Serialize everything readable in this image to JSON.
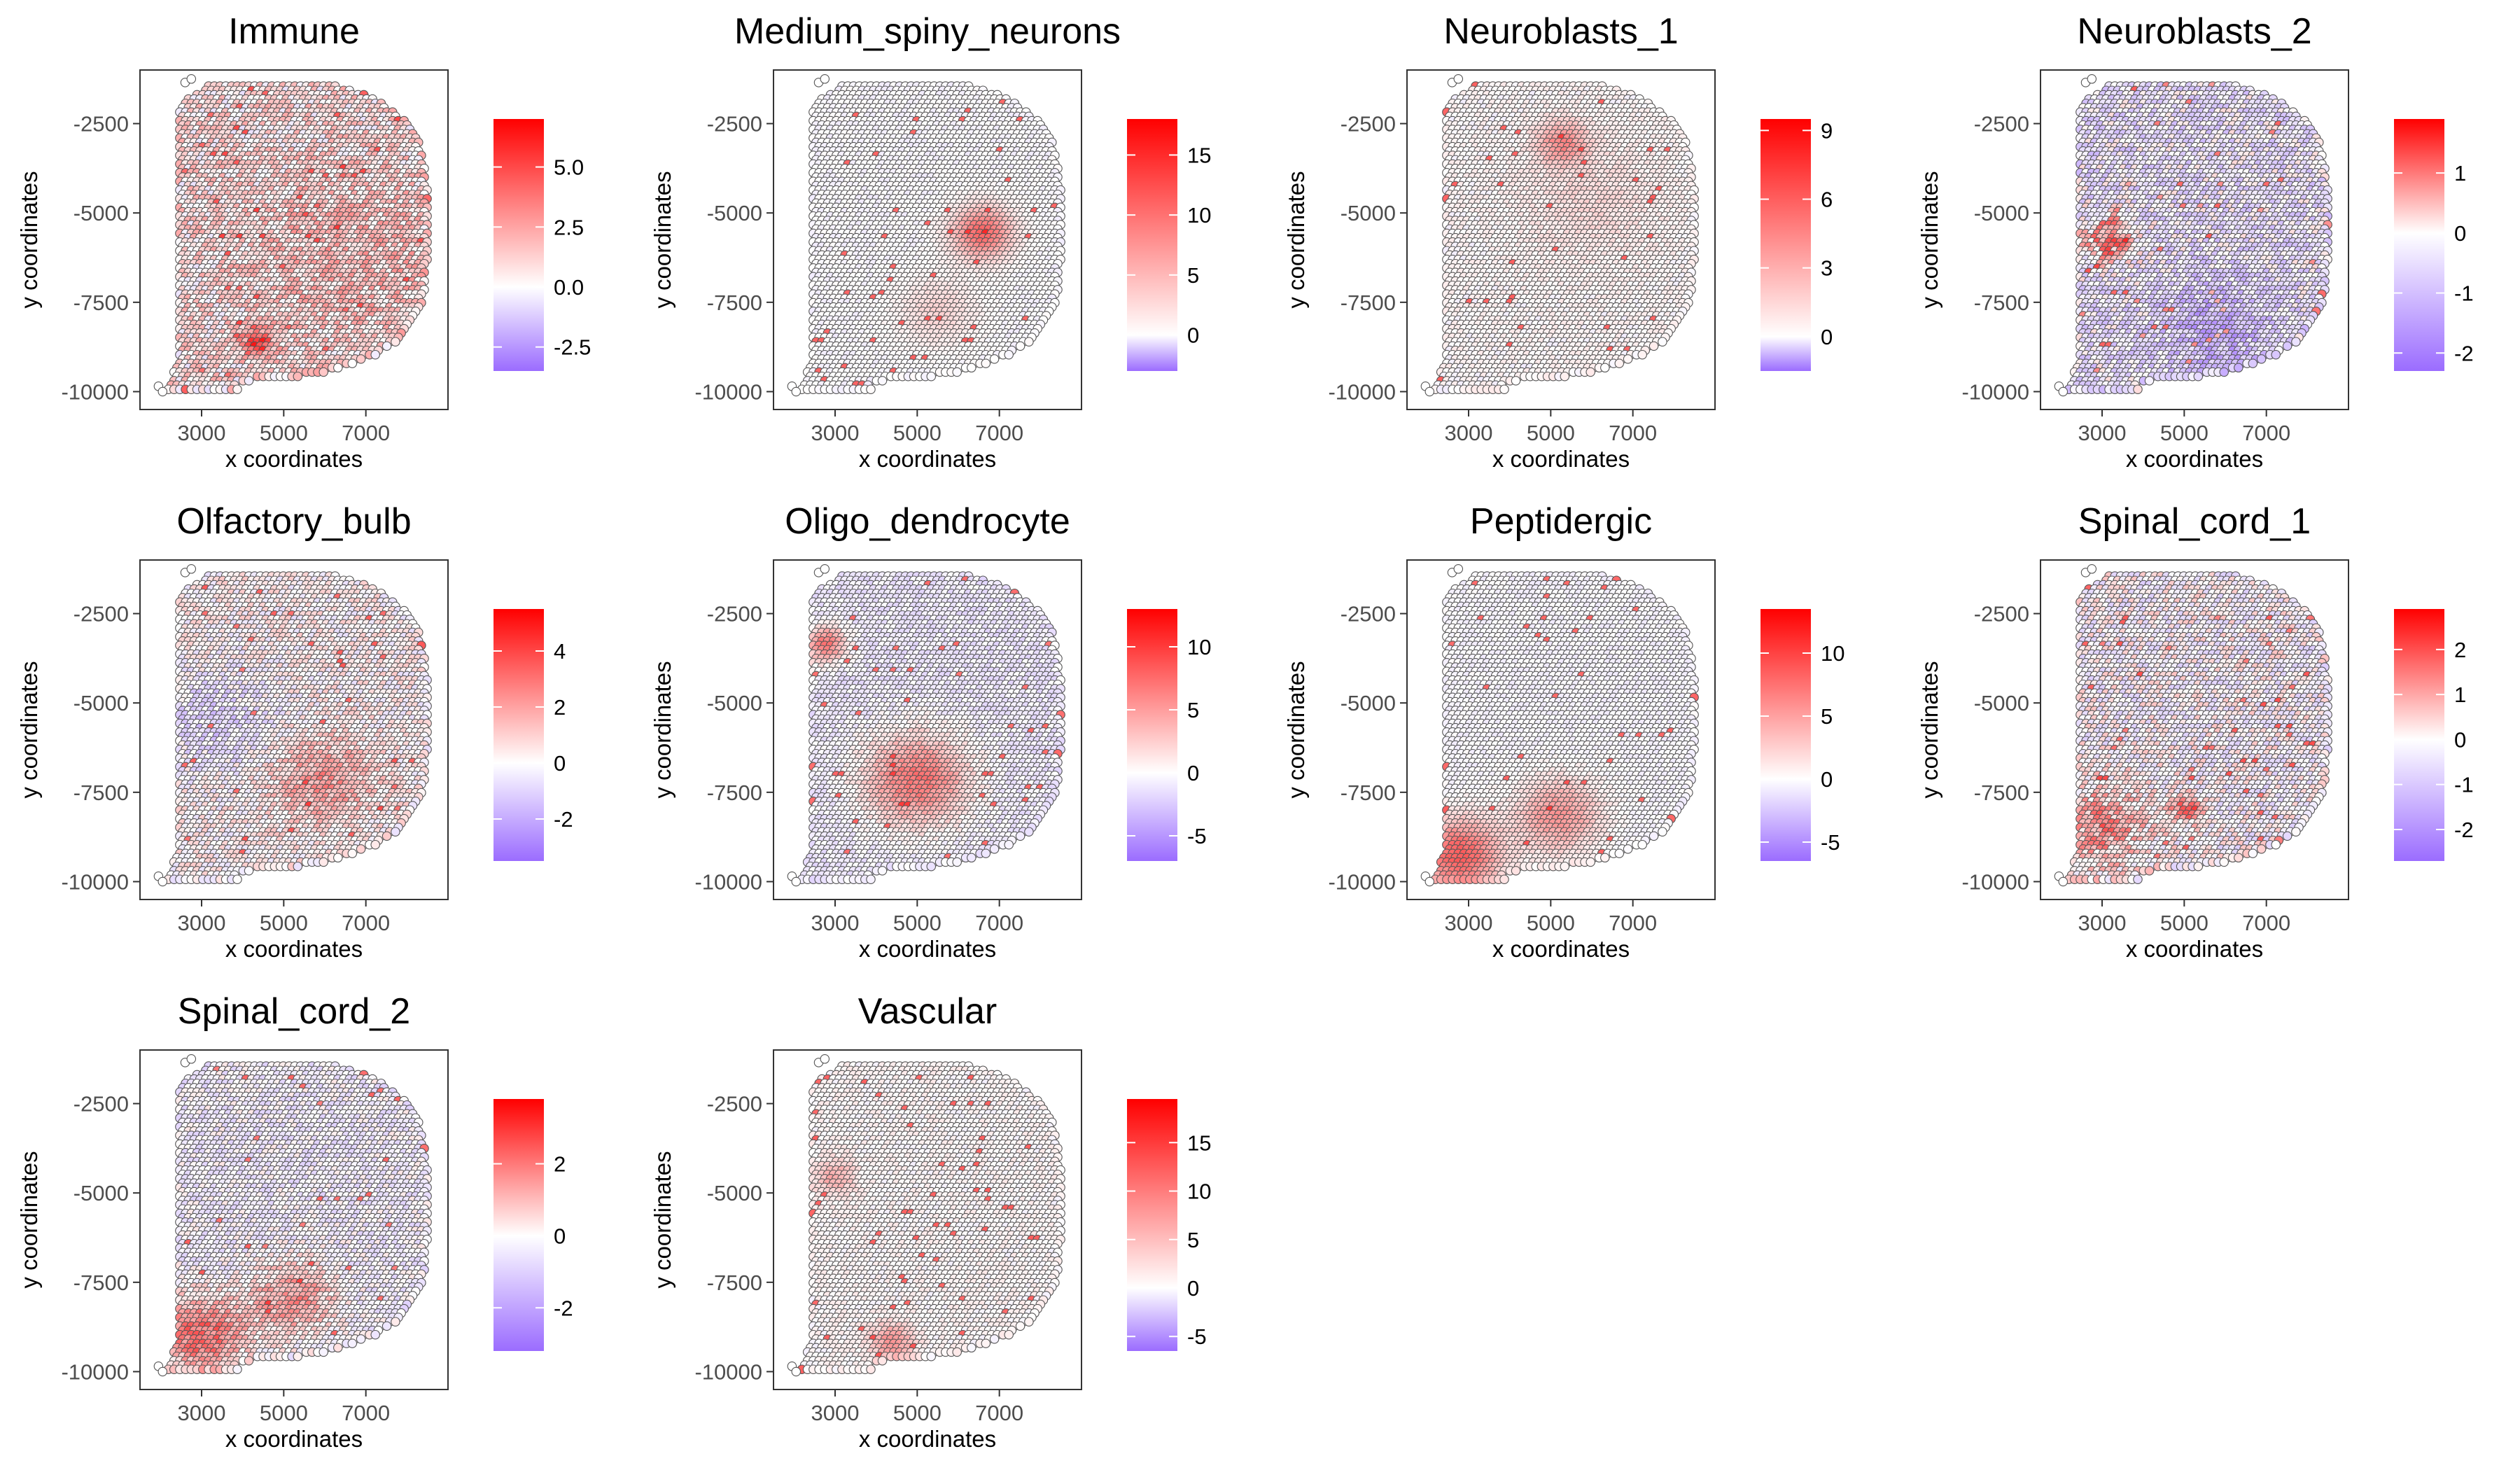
{
  "colors": {
    "low": "#9b6cff",
    "mid": "#ffffff",
    "high": "#ff0000",
    "spot_outline": "#555555"
  },
  "chart_data": [
    {
      "type": "scatter",
      "title": "Immune",
      "xlabel": "x coordinates",
      "ylabel": "y coordinates",
      "x_ticks": [
        3000,
        5000,
        7000
      ],
      "y_ticks": [
        -2500,
        -5000,
        -7500,
        -10000
      ],
      "xlim": [
        1500,
        9000
      ],
      "ylim": [
        -10500,
        -1000
      ],
      "legend": {
        "position": "right",
        "range": [
          -3.5,
          7.0
        ],
        "breaks": [
          -2.5,
          0.0,
          2.5,
          5.0
        ],
        "labels": [
          "-2.5",
          "0.0",
          "2.5",
          "5.0"
        ]
      },
      "baseline": 0.8,
      "noise": 1.6,
      "hotspots": [
        [
          4400,
          -8700,
          400,
          4.5
        ],
        [
          6600,
          -6300,
          2500,
          1.0
        ]
      ]
    },
    {
      "type": "scatter",
      "title": "Medium_spiny_neurons",
      "xlabel": "x coordinates",
      "ylabel": "y coordinates",
      "x_ticks": [
        3000,
        5000,
        7000
      ],
      "y_ticks": [
        -2500,
        -5000,
        -7500,
        -10000
      ],
      "xlim": [
        1500,
        9000
      ],
      "ylim": [
        -10500,
        -1000
      ],
      "legend": {
        "position": "right",
        "range": [
          -3,
          18
        ],
        "breaks": [
          0,
          5,
          10,
          15
        ],
        "labels": [
          "0",
          "5",
          "10",
          "15"
        ]
      },
      "baseline": 0.0,
      "noise": 0.4,
      "hotspots": [
        [
          6600,
          -5600,
          700,
          11
        ],
        [
          5500,
          -7800,
          900,
          3
        ]
      ]
    },
    {
      "type": "scatter",
      "title": "Neuroblasts_1",
      "xlabel": "x coordinates",
      "ylabel": "y coordinates",
      "x_ticks": [
        3000,
        5000,
        7000
      ],
      "y_ticks": [
        -2500,
        -5000,
        -7500,
        -10000
      ],
      "xlim": [
        1500,
        9000
      ],
      "ylim": [
        -10500,
        -1000
      ],
      "legend": {
        "position": "right",
        "range": [
          -1.5,
          9.5
        ],
        "breaks": [
          0,
          3,
          6,
          9
        ],
        "labels": [
          "0",
          "3",
          "6",
          "9"
        ]
      },
      "baseline": 0.3,
      "noise": 0.5,
      "hotspots": [
        [
          5300,
          -3100,
          600,
          4
        ],
        [
          6000,
          -4800,
          1500,
          1
        ]
      ]
    },
    {
      "type": "scatter",
      "title": "Neuroblasts_2",
      "xlabel": "x coordinates",
      "ylabel": "y coordinates",
      "x_ticks": [
        3000,
        5000,
        7000
      ],
      "y_ticks": [
        -2500,
        -5000,
        -7500,
        -10000
      ],
      "xlim": [
        1500,
        9000
      ],
      "ylim": [
        -10500,
        -1000
      ],
      "legend": {
        "position": "right",
        "range": [
          -2.3,
          1.9
        ],
        "breaks": [
          -2,
          -1,
          0,
          1
        ],
        "labels": [
          "-2",
          "-1",
          "0",
          "1"
        ]
      },
      "baseline": -0.4,
      "noise": 0.7,
      "hotspots": [
        [
          3200,
          -5800,
          650,
          1.6
        ],
        [
          5800,
          -8300,
          1300,
          -0.9
        ]
      ]
    },
    {
      "type": "scatter",
      "title": "Olfactory_bulb",
      "xlabel": "x coordinates",
      "ylabel": "y coordinates",
      "x_ticks": [
        3000,
        5000,
        7000
      ],
      "y_ticks": [
        -2500,
        -5000,
        -7500,
        -10000
      ],
      "xlim": [
        1500,
        9000
      ],
      "ylim": [
        -10500,
        -1000
      ],
      "legend": {
        "position": "right",
        "range": [
          -3.5,
          5.5
        ],
        "breaks": [
          -2,
          0,
          2,
          4
        ],
        "labels": [
          "-2",
          "0",
          "2",
          "4"
        ]
      },
      "baseline": 0.2,
      "noise": 1.0,
      "hotspots": [
        [
          6000,
          -7200,
          1200,
          2.0
        ],
        [
          3400,
          -5600,
          1400,
          -1.2
        ]
      ]
    },
    {
      "type": "scatter",
      "title": "Oligo_dendrocyte",
      "xlabel": "x coordinates",
      "ylabel": "y coordinates",
      "x_ticks": [
        3000,
        5000,
        7000
      ],
      "y_ticks": [
        -2500,
        -5000,
        -7500,
        -10000
      ],
      "xlim": [
        1500,
        9000
      ],
      "ylim": [
        -10500,
        -1000
      ],
      "legend": {
        "position": "right",
        "range": [
          -7,
          13
        ],
        "breaks": [
          -5,
          0,
          5,
          10
        ],
        "labels": [
          "-5",
          "0",
          "5",
          "10"
        ]
      },
      "baseline": -1.0,
      "noise": 1.0,
      "hotspots": [
        [
          2800,
          -3400,
          500,
          8
        ],
        [
          5000,
          -7200,
          1300,
          8
        ]
      ]
    },
    {
      "type": "scatter",
      "title": "Peptidergic",
      "xlabel": "x coordinates",
      "ylabel": "y coordinates",
      "x_ticks": [
        3000,
        5000,
        7000
      ],
      "y_ticks": [
        -2500,
        -5000,
        -7500,
        -10000
      ],
      "xlim": [
        1500,
        9000
      ],
      "ylim": [
        -10500,
        -1000
      ],
      "legend": {
        "position": "right",
        "range": [
          -6.5,
          13.5
        ],
        "breaks": [
          -5,
          0,
          5,
          10
        ],
        "labels": [
          "-5",
          "0",
          "5",
          "10"
        ]
      },
      "baseline": -0.3,
      "noise": 0.6,
      "hotspots": [
        [
          2800,
          -9300,
          1000,
          9
        ],
        [
          5200,
          -8200,
          1000,
          6
        ]
      ]
    },
    {
      "type": "scatter",
      "title": "Spinal_cord_1",
      "xlabel": "x coordinates",
      "ylabel": "y coordinates",
      "x_ticks": [
        3000,
        5000,
        7000
      ],
      "y_ticks": [
        -2500,
        -5000,
        -7500,
        -10000
      ],
      "xlim": [
        1500,
        9000
      ],
      "ylim": [
        -10500,
        -1000
      ],
      "legend": {
        "position": "right",
        "range": [
          -2.7,
          2.9
        ],
        "breaks": [
          -2,
          -1,
          0,
          1,
          2
        ],
        "labels": [
          "-2",
          "-1",
          "0",
          "1",
          "2"
        ]
      },
      "baseline": -0.1,
      "noise": 0.8,
      "hotspots": [
        [
          3000,
          -8500,
          1200,
          1.3
        ],
        [
          5100,
          -8000,
          400,
          1.8
        ]
      ]
    },
    {
      "type": "scatter",
      "title": "Spinal_cord_2",
      "xlabel": "x coordinates",
      "ylabel": "y coordinates",
      "x_ticks": [
        3000,
        5000,
        7000
      ],
      "y_ticks": [
        -2500,
        -5000,
        -7500,
        -10000
      ],
      "xlim": [
        1500,
        9000
      ],
      "ylim": [
        -10500,
        -1000
      ],
      "legend": {
        "position": "right",
        "range": [
          -3.2,
          3.8
        ],
        "breaks": [
          -2,
          0,
          2
        ],
        "labels": [
          "-2",
          "0",
          "2"
        ]
      },
      "baseline": -0.3,
      "noise": 0.7,
      "hotspots": [
        [
          3000,
          -9000,
          1100,
          2.6
        ],
        [
          5300,
          -8000,
          1000,
          2.0
        ]
      ]
    },
    {
      "type": "scatter",
      "title": "Vascular",
      "xlabel": "x coordinates",
      "ylabel": "y coordinates",
      "x_ticks": [
        3000,
        5000,
        7000
      ],
      "y_ticks": [
        -2500,
        -5000,
        -7500,
        -10000
      ],
      "xlim": [
        1500,
        9000
      ],
      "ylim": [
        -10500,
        -1000
      ],
      "legend": {
        "position": "right",
        "range": [
          -6.5,
          19.5
        ],
        "breaks": [
          -5,
          0,
          5,
          10,
          15
        ],
        "labels": [
          "-5",
          "0",
          "5",
          "10",
          "15"
        ]
      },
      "baseline": 0.5,
      "noise": 1.2,
      "hotspots": [
        [
          4400,
          -9200,
          500,
          8
        ],
        [
          3000,
          -4600,
          500,
          6
        ]
      ]
    }
  ]
}
